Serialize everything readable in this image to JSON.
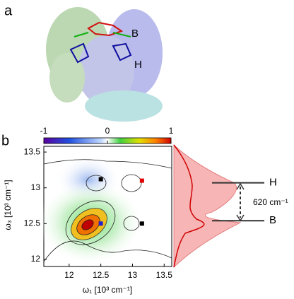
{
  "panel_a": {
    "label": "a",
    "labels": [
      "B",
      "H"
    ]
  },
  "panel_b": {
    "label": "b",
    "colorbar": {
      "lim": [
        -1,
        1
      ],
      "ticks": [
        -1,
        0,
        1
      ]
    },
    "xlim": [
      11.6,
      13.62
    ],
    "ylim": [
      11.9,
      13.58
    ],
    "xticks": [
      12,
      12.5,
      13,
      13.5
    ],
    "yticks": [
      12,
      12.5,
      13,
      13.5
    ],
    "xlabel": "ω₁ [10³ cm⁻¹]",
    "ylabel": "ω₃ [10³ cm⁻¹]",
    "markers": [
      {
        "x": 12.5,
        "y": 13.12,
        "color": "#000000"
      },
      {
        "x": 13.15,
        "y": 13.1,
        "color": "#e00000"
      },
      {
        "x": 13.15,
        "y": 12.5,
        "color": "#000000"
      },
      {
        "x": 12.5,
        "y": 12.5,
        "color": "#2020d0"
      }
    ],
    "levels": [
      {
        "name": "H",
        "y": 13.07
      },
      {
        "name": "B",
        "y": 12.54
      }
    ],
    "annotation": "620 cm⁻¹"
  }
}
